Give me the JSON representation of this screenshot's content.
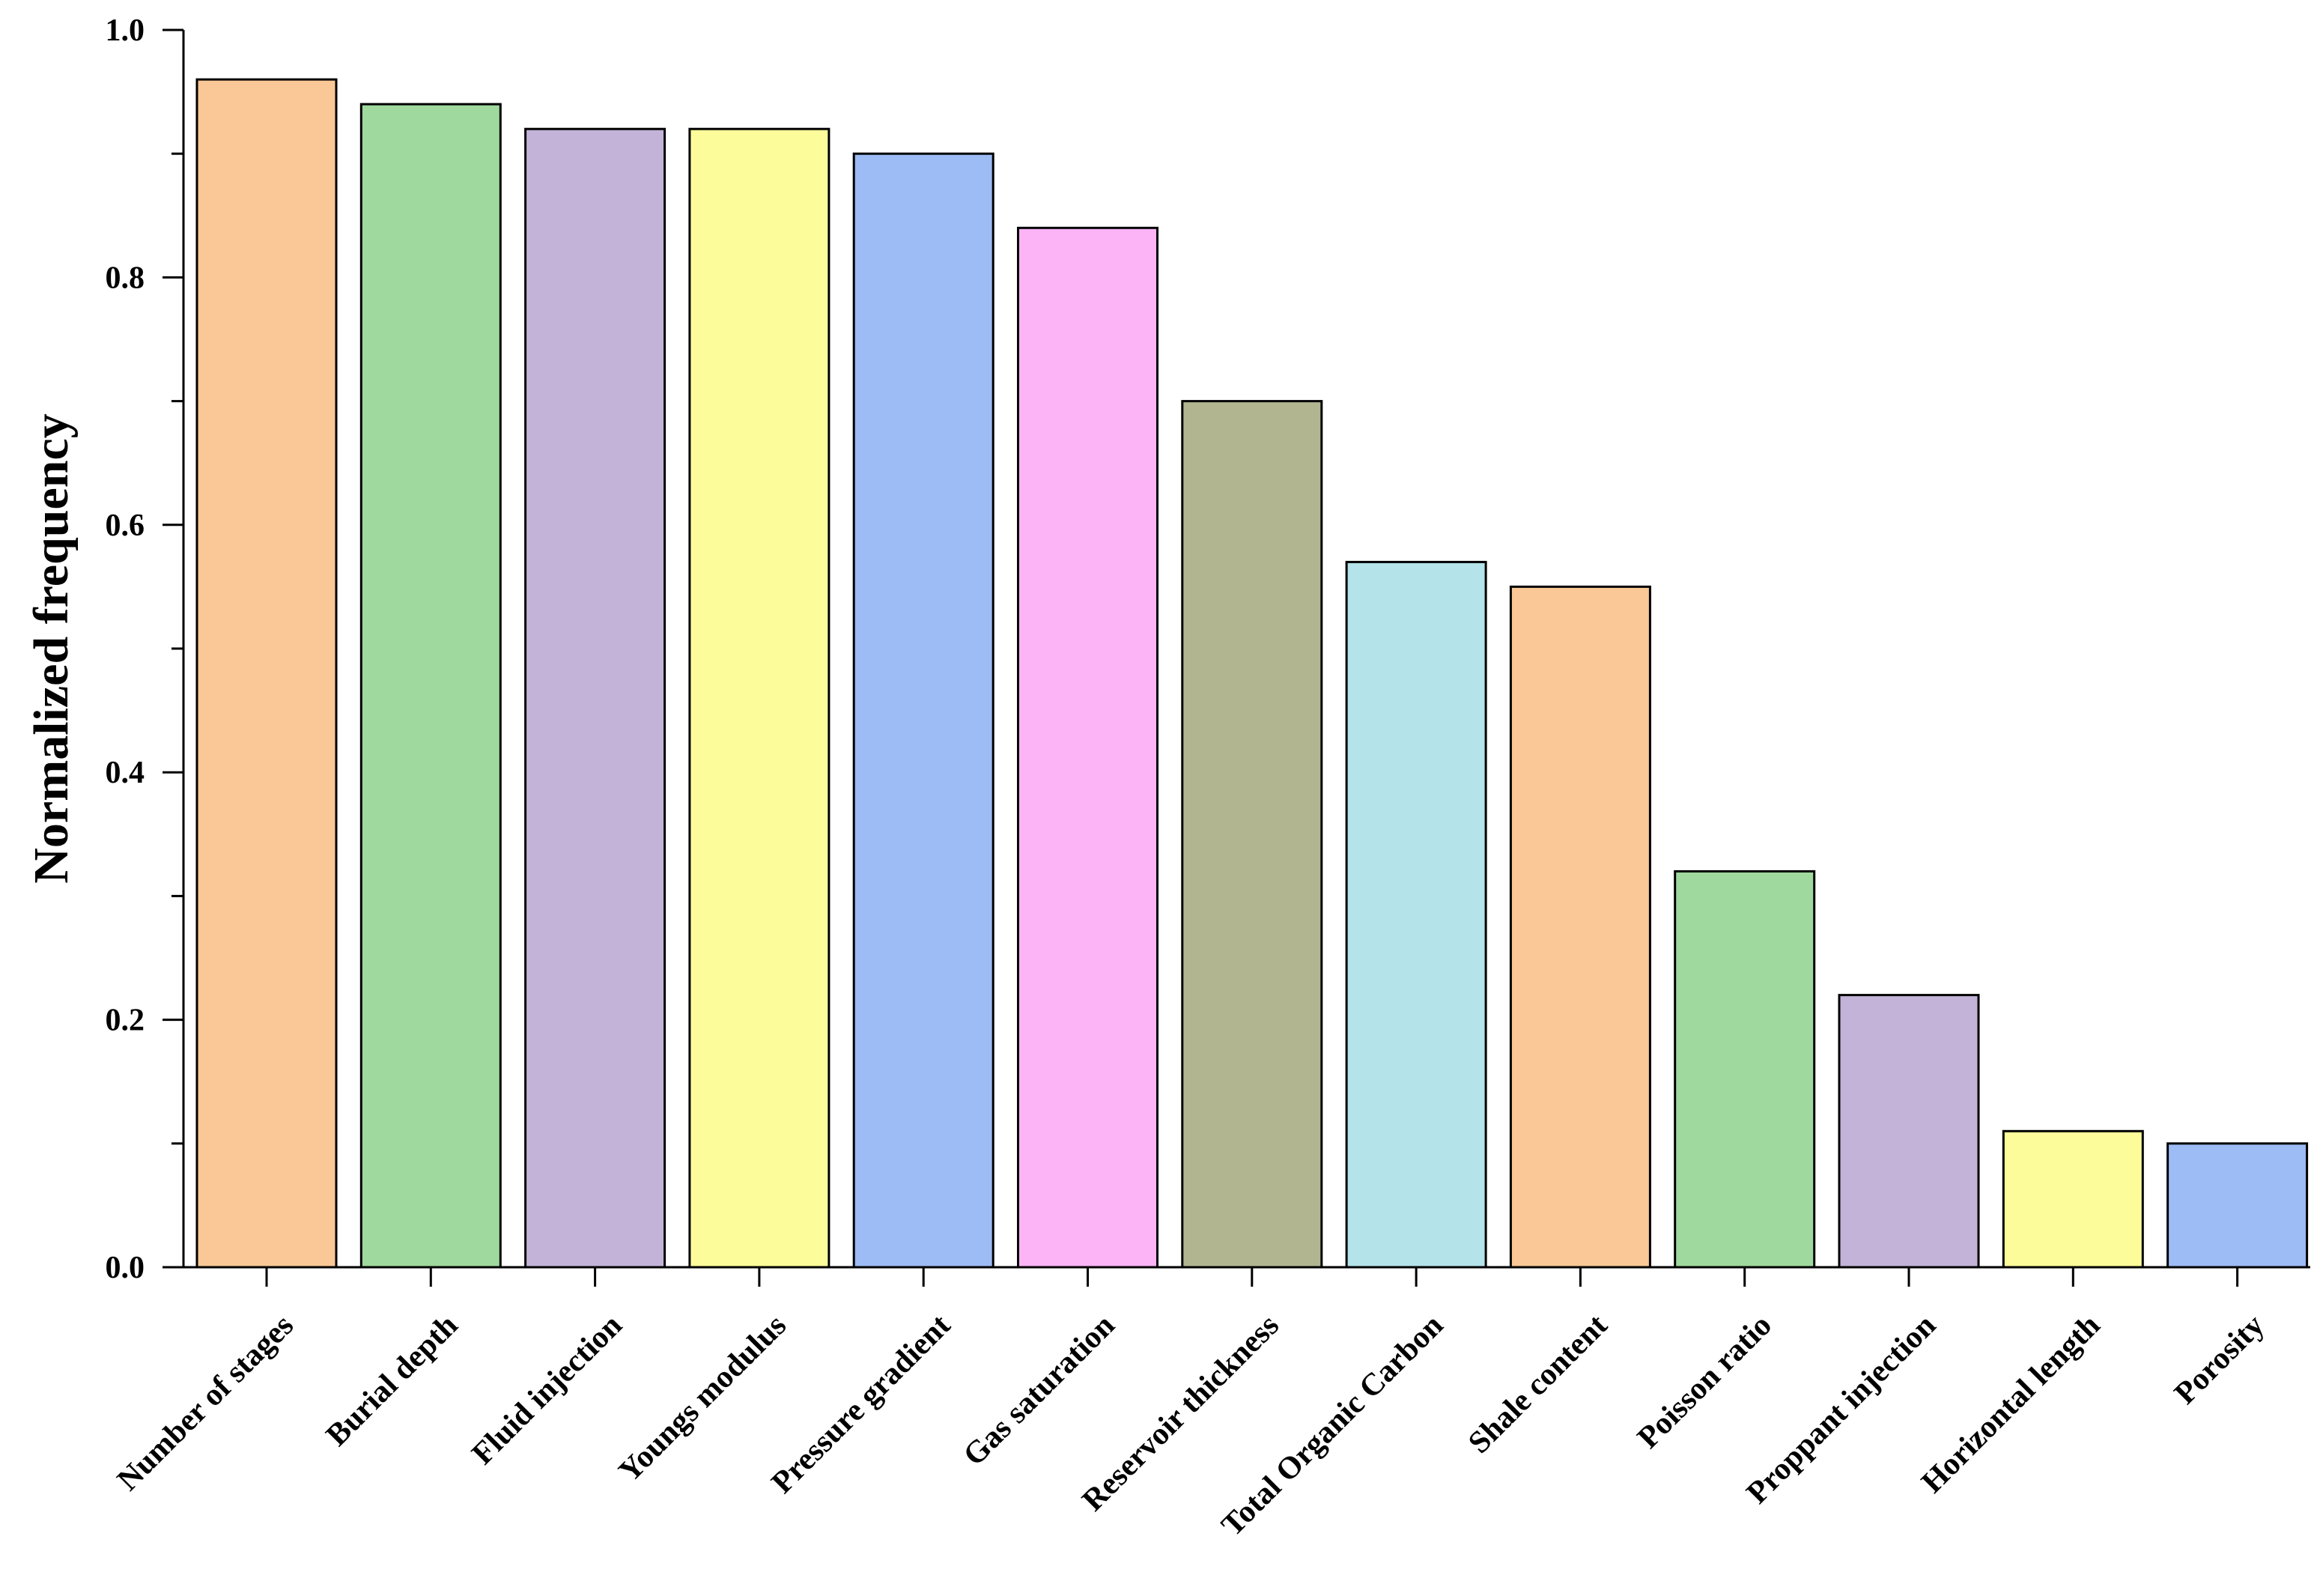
{
  "chart_data": {
    "type": "bar",
    "title": "",
    "xlabel": "",
    "ylabel": "Normalized frequency",
    "ylim": [
      0,
      1.0
    ],
    "yticks": [
      {
        "value": 0.0,
        "label": "0.0"
      },
      {
        "value": 0.2,
        "label": "0.2"
      },
      {
        "value": 0.4,
        "label": "0.4"
      },
      {
        "value": 0.6,
        "label": "0.6"
      },
      {
        "value": 0.8,
        "label": "0.8"
      },
      {
        "value": 1.0,
        "label": "1.0"
      }
    ],
    "minor_ticks": [
      0.1,
      0.3,
      0.5,
      0.7,
      0.9
    ],
    "grid": false,
    "categories": [
      "Number of stages",
      "Burial depth",
      "Fluid injection",
      "Youngs modulus",
      "Pressure gradient",
      "Gas saturation",
      "Reservoir thickness",
      "Total Organic Carbon",
      "Shale content",
      "Poisson ratio",
      "Proppant injection",
      "Horizontal length",
      "Porosity"
    ],
    "values": [
      0.96,
      0.94,
      0.92,
      0.92,
      0.9,
      0.84,
      0.7,
      0.57,
      0.55,
      0.32,
      0.22,
      0.11,
      0.1
    ],
    "colors": [
      "#FAC896",
      "#9FD99D",
      "#C3B3D8",
      "#FCFC9B",
      "#9DBBF4",
      "#FCB4F6",
      "#B2B690",
      "#B4E3E9",
      "#FAC896",
      "#9FD99D",
      "#C3B3D8",
      "#FCFC9B",
      "#9DBBF4"
    ],
    "bar_edge_color": "#000000",
    "axis_color": "#000000"
  }
}
